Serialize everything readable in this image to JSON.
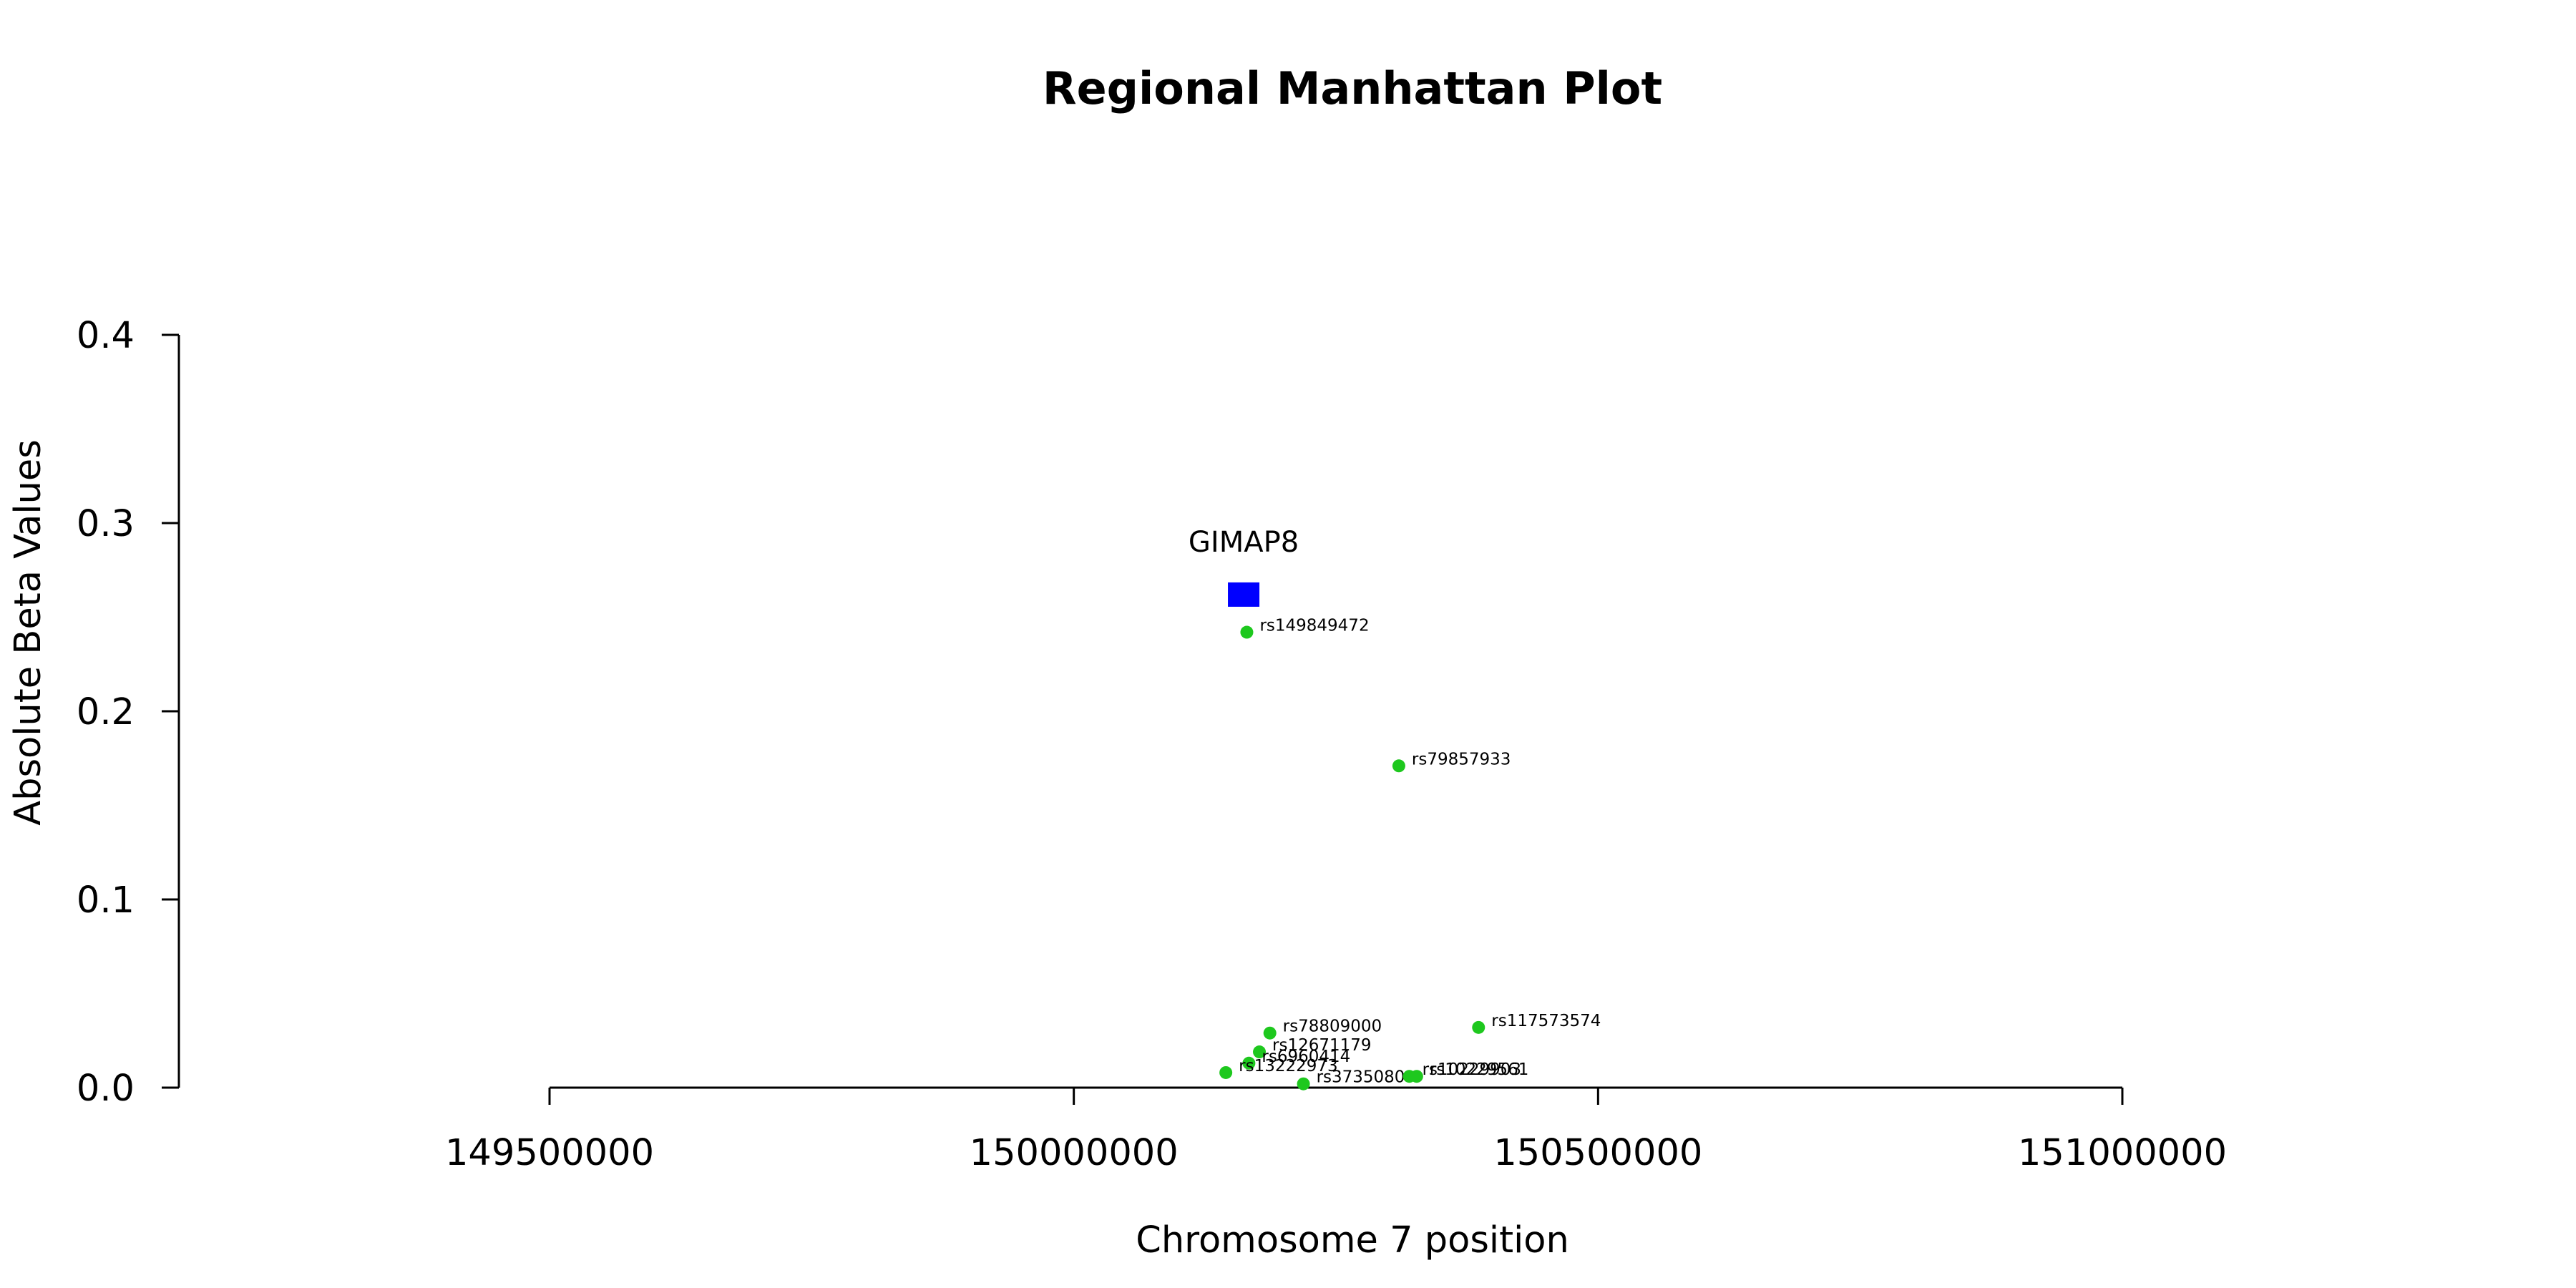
{
  "chart_data": {
    "type": "scatter",
    "title": "Regional Manhattan Plot",
    "xlabel": "Chromosome 7 position",
    "ylabel": "Absolute Beta Values",
    "xlim": [
      149500000,
      151000000
    ],
    "ylim": [
      0,
      0.4
    ],
    "xticks": [
      "149500000",
      "150000000",
      "150500000",
      "151000000"
    ],
    "yticks": [
      "0.0",
      "0.1",
      "0.2",
      "0.3",
      "0.4"
    ],
    "grid": false,
    "genes": [
      {
        "name": "GIMAP8",
        "x": 150162000,
        "y": 0.262,
        "color": "#0000ff"
      }
    ],
    "snps_color": "#1ec81e",
    "snps": [
      {
        "label": "rs149849472",
        "x": 150165000,
        "y": 0.242
      },
      {
        "label": "rs79857933",
        "x": 150310000,
        "y": 0.171
      },
      {
        "label": "rs117573574",
        "x": 150386000,
        "y": 0.032
      },
      {
        "label": "rs78809000",
        "x": 150187000,
        "y": 0.029
      },
      {
        "label": "rs12671179",
        "x": 150177000,
        "y": 0.019
      },
      {
        "label": "rs6960414",
        "x": 150167000,
        "y": 0.013
      },
      {
        "label": "rs13222973",
        "x": 150145000,
        "y": 0.008
      },
      {
        "label": "rs3735080",
        "x": 150219000,
        "y": 0.002
      },
      {
        "label": "rs10229903",
        "x": 150320000,
        "y": 0.006
      },
      {
        "label": "rs10229561",
        "x": 150327000,
        "y": 0.006
      }
    ]
  }
}
